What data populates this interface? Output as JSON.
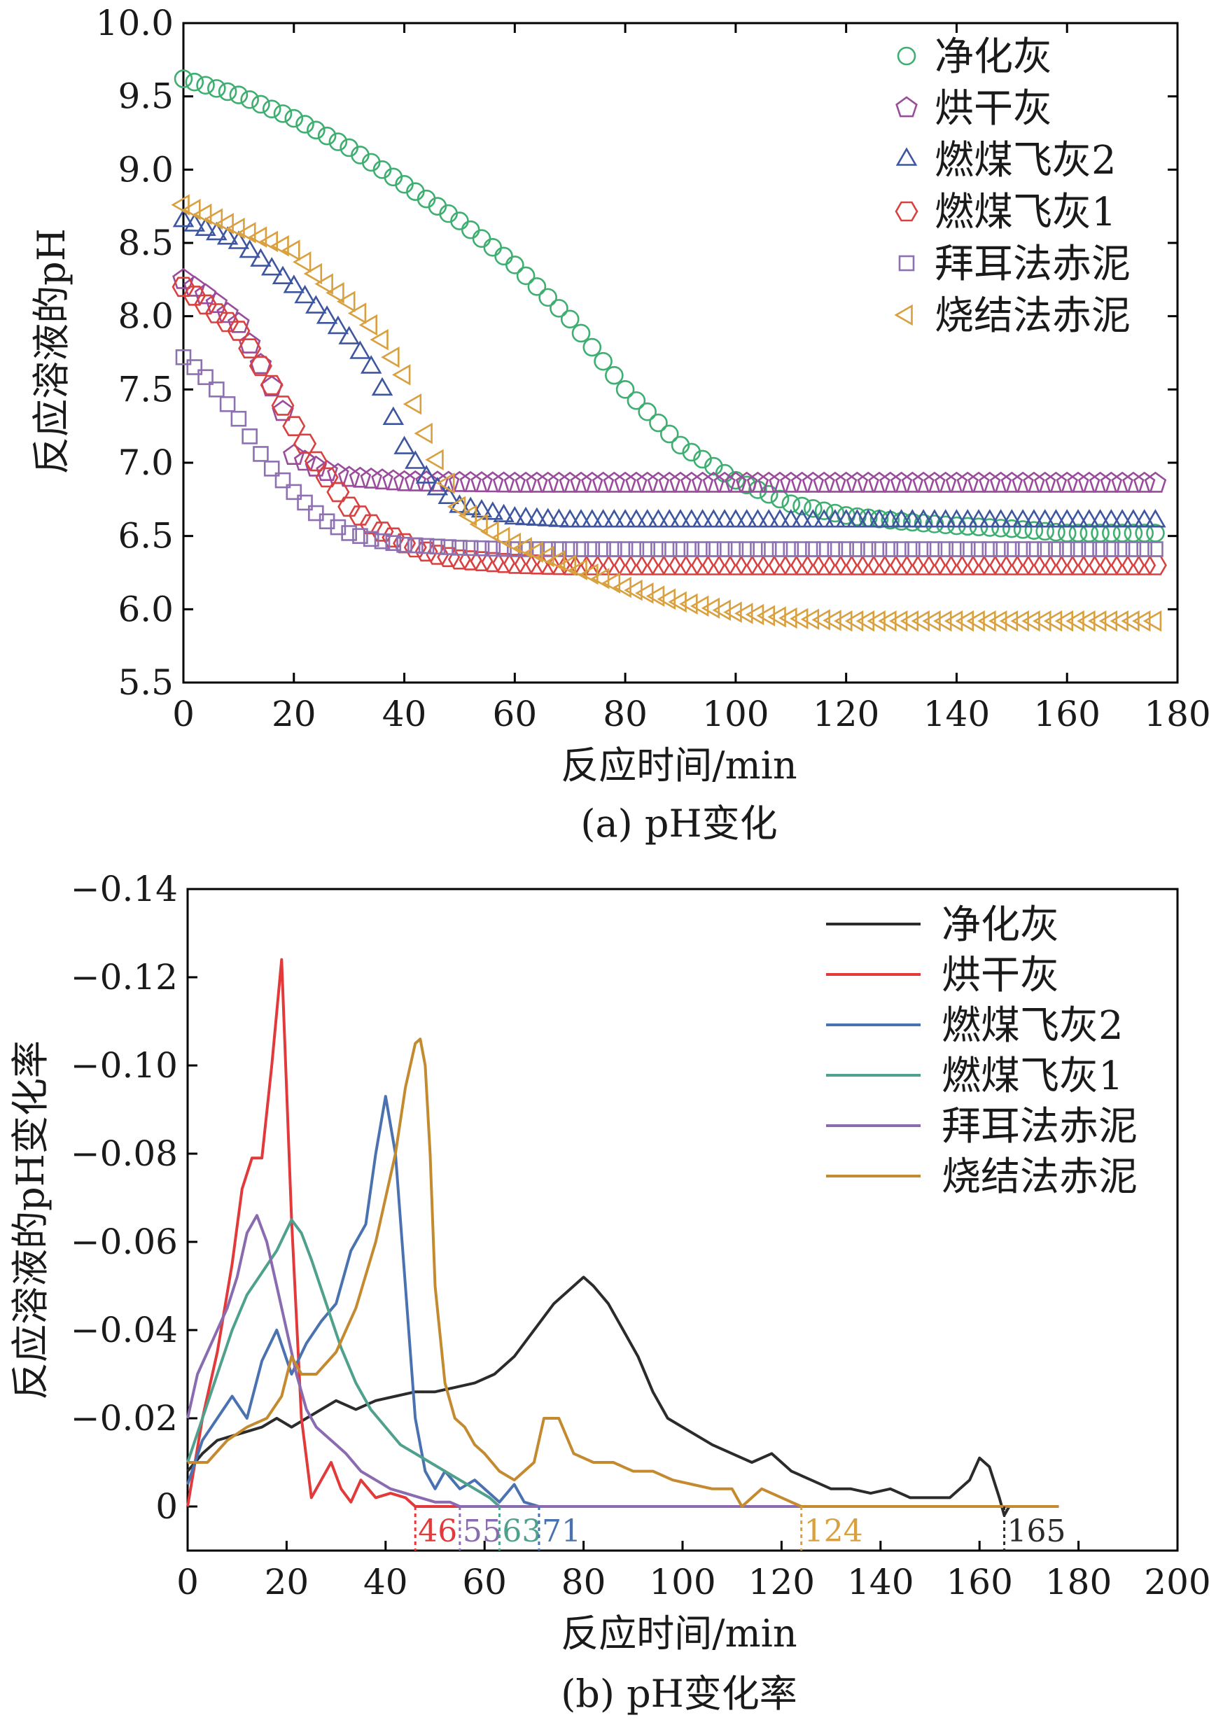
{
  "chart_data": [
    {
      "type": "scatter",
      "caption": "(a) pH变化",
      "xlabel": "反应时间/min",
      "ylabel": "反应溶液的pH",
      "xlim": [
        0,
        180
      ],
      "ylim": [
        5.5,
        10.0
      ],
      "xticks": [
        0,
        20,
        40,
        60,
        80,
        100,
        120,
        140,
        160,
        180
      ],
      "xtick_labels": [
        "0",
        "20",
        "40",
        "60",
        "80",
        "100",
        "120",
        "140",
        "160",
        "180"
      ],
      "yticks": [
        5.5,
        6.0,
        6.5,
        7.0,
        7.5,
        8.0,
        8.5,
        9.0,
        9.5,
        10.0
      ],
      "ytick_labels": [
        "5.5",
        "6.0",
        "6.5",
        "7.0",
        "7.5",
        "8.0",
        "8.5",
        "9.0",
        "9.5",
        "10.0"
      ],
      "legend_position": "top-right",
      "series": [
        {
          "name": "净化灰",
          "marker": "circle",
          "color": "#3fae71",
          "x": [
            0,
            10,
            20,
            30,
            40,
            50,
            60,
            70,
            80,
            90,
            100,
            110,
            120,
            130,
            140,
            150,
            160,
            176
          ],
          "y": [
            9.62,
            9.51,
            9.35,
            9.15,
            8.9,
            8.65,
            8.35,
            7.98,
            7.5,
            7.12,
            6.88,
            6.72,
            6.64,
            6.6,
            6.57,
            6.55,
            6.52,
            6.52
          ]
        },
        {
          "name": "烘干灰",
          "marker": "pentagon",
          "color": "#9a4c9c",
          "x": [
            0,
            5,
            10,
            15,
            18,
            20,
            25,
            30,
            40,
            60,
            100,
            176
          ],
          "y": [
            8.25,
            8.12,
            7.95,
            7.6,
            7.35,
            7.05,
            6.95,
            6.9,
            6.87,
            6.86,
            6.86,
            6.86
          ]
        },
        {
          "name": "燃煤飞灰2",
          "marker": "triangle",
          "color": "#3e56a0",
          "x": [
            0,
            10,
            20,
            30,
            35,
            40,
            45,
            50,
            60,
            70,
            100,
            176
          ],
          "y": [
            8.65,
            8.5,
            8.2,
            7.85,
            7.6,
            7.1,
            6.85,
            6.7,
            6.62,
            6.6,
            6.6,
            6.6
          ]
        },
        {
          "name": "燃煤飞灰1",
          "marker": "hexagon",
          "color": "#d94040",
          "x": [
            0,
            5,
            10,
            15,
            20,
            25,
            30,
            35,
            40,
            45,
            50,
            60,
            70,
            176
          ],
          "y": [
            8.2,
            8.05,
            7.9,
            7.6,
            7.25,
            6.95,
            6.7,
            6.55,
            6.45,
            6.38,
            6.34,
            6.31,
            6.3,
            6.3
          ]
        },
        {
          "name": "拜耳法赤泥",
          "marker": "square",
          "color": "#8d71b0",
          "x": [
            0,
            5,
            10,
            15,
            20,
            25,
            30,
            35,
            40,
            50,
            60,
            176
          ],
          "y": [
            7.72,
            7.55,
            7.3,
            7.0,
            6.8,
            6.62,
            6.52,
            6.47,
            6.44,
            6.42,
            6.41,
            6.41
          ]
        },
        {
          "name": "烧结法赤泥",
          "marker": "triangle-left",
          "color": "#d9a040",
          "x": [
            0,
            10,
            20,
            25,
            30,
            35,
            40,
            45,
            50,
            55,
            60,
            70,
            80,
            90,
            100,
            110,
            120,
            176
          ],
          "y": [
            8.76,
            8.6,
            8.45,
            8.25,
            8.1,
            7.9,
            7.6,
            7.1,
            6.7,
            6.55,
            6.45,
            6.3,
            6.15,
            6.05,
            5.98,
            5.94,
            5.92,
            5.92
          ]
        }
      ]
    },
    {
      "type": "line",
      "caption": "(b) pH变化率",
      "xlabel": "反应时间/min",
      "ylabel": "反应溶液的pH变化率",
      "xlim": [
        0,
        200
      ],
      "ylim": [
        0.01,
        -0.14
      ],
      "xticks": [
        0,
        20,
        40,
        60,
        80,
        100,
        120,
        140,
        160,
        180,
        200
      ],
      "xtick_labels": [
        "0",
        "20",
        "40",
        "60",
        "80",
        "100",
        "120",
        "140",
        "160",
        "180",
        "200"
      ],
      "yticks": [
        0,
        -0.02,
        -0.04,
        -0.06,
        -0.08,
        -0.1,
        -0.12,
        -0.14
      ],
      "ytick_labels": [
        "0",
        "−0.02",
        "−0.04",
        "−0.06",
        "−0.08",
        "−0.10",
        "−0.12",
        "−0.14"
      ],
      "legend_position": "top-right",
      "series": [
        {
          "name": "净化灰",
          "color": "#2b2b2b",
          "x": [
            0,
            3,
            6,
            9,
            12,
            15,
            18,
            21,
            24,
            27,
            30,
            34,
            38,
            42,
            46,
            50,
            54,
            58,
            62,
            66,
            70,
            74,
            78,
            80,
            82,
            85,
            88,
            91,
            94,
            97,
            100,
            103,
            106,
            110,
            114,
            118,
            122,
            126,
            130,
            134,
            138,
            142,
            146,
            150,
            154,
            158,
            160,
            162,
            164,
            165,
            166,
            176
          ],
          "y": [
            -0.008,
            -0.012,
            -0.015,
            -0.016,
            -0.017,
            -0.018,
            -0.02,
            -0.018,
            -0.02,
            -0.022,
            -0.024,
            -0.022,
            -0.024,
            -0.025,
            -0.026,
            -0.026,
            -0.027,
            -0.028,
            -0.03,
            -0.034,
            -0.04,
            -0.046,
            -0.05,
            -0.052,
            -0.05,
            -0.046,
            -0.04,
            -0.034,
            -0.026,
            -0.02,
            -0.018,
            -0.016,
            -0.014,
            -0.012,
            -0.01,
            -0.012,
            -0.008,
            -0.006,
            -0.004,
            -0.004,
            -0.003,
            -0.004,
            -0.002,
            -0.002,
            -0.002,
            -0.006,
            -0.011,
            -0.009,
            -0.002,
            0.002,
            0.0,
            0.0
          ]
        },
        {
          "name": "烘干灰",
          "color": "#e23a3a",
          "x": [
            0,
            3,
            6,
            9,
            11,
            13,
            15,
            17,
            19,
            21,
            23,
            25,
            27,
            29,
            31,
            33,
            35,
            38,
            41,
            44,
            46,
            48,
            176
          ],
          "y": [
            0.0,
            -0.02,
            -0.035,
            -0.055,
            -0.072,
            -0.079,
            -0.079,
            -0.1,
            -0.124,
            -0.065,
            -0.02,
            -0.002,
            -0.006,
            -0.01,
            -0.004,
            -0.001,
            -0.006,
            -0.002,
            -0.003,
            -0.002,
            0.0,
            0.0,
            0.0
          ]
        },
        {
          "name": "燃煤飞灰2",
          "color": "#4a72b0",
          "x": [
            0,
            3,
            6,
            9,
            12,
            15,
            18,
            21,
            24,
            27,
            30,
            33,
            36,
            38,
            40,
            42,
            44,
            46,
            48,
            50,
            52,
            55,
            58,
            61,
            63,
            66,
            68,
            71,
            176
          ],
          "y": [
            -0.005,
            -0.015,
            -0.02,
            -0.025,
            -0.02,
            -0.033,
            -0.04,
            -0.03,
            -0.037,
            -0.042,
            -0.046,
            -0.058,
            -0.064,
            -0.08,
            -0.093,
            -0.08,
            -0.05,
            -0.02,
            -0.008,
            -0.004,
            -0.008,
            -0.004,
            -0.006,
            -0.003,
            -0.001,
            -0.005,
            -0.001,
            0.0,
            0.0
          ]
        },
        {
          "name": "燃煤飞灰1",
          "color": "#4fa08c",
          "x": [
            0,
            3,
            6,
            9,
            12,
            15,
            18,
            21,
            23,
            25,
            28,
            31,
            34,
            37,
            40,
            43,
            46,
            49,
            52,
            55,
            58,
            61,
            63,
            176
          ],
          "y": [
            -0.01,
            -0.02,
            -0.03,
            -0.04,
            -0.048,
            -0.053,
            -0.058,
            -0.065,
            -0.062,
            -0.056,
            -0.046,
            -0.036,
            -0.028,
            -0.022,
            -0.018,
            -0.014,
            -0.012,
            -0.01,
            -0.008,
            -0.006,
            -0.004,
            -0.002,
            0.0,
            0.0
          ]
        },
        {
          "name": "拜耳法赤泥",
          "color": "#8a6bb0",
          "x": [
            0,
            2,
            4,
            6,
            8,
            10,
            12,
            14,
            16,
            18,
            20,
            22,
            24,
            26,
            28,
            30,
            32,
            35,
            38,
            41,
            44,
            47,
            50,
            53,
            55,
            176
          ],
          "y": [
            -0.02,
            -0.03,
            -0.035,
            -0.04,
            -0.045,
            -0.052,
            -0.062,
            -0.066,
            -0.06,
            -0.05,
            -0.04,
            -0.03,
            -0.022,
            -0.018,
            -0.016,
            -0.014,
            -0.012,
            -0.008,
            -0.006,
            -0.004,
            -0.003,
            -0.002,
            -0.001,
            -0.001,
            0.0,
            0.0
          ]
        },
        {
          "name": "烧结法赤泥",
          "color": "#c48a30",
          "x": [
            0,
            4,
            8,
            12,
            16,
            19,
            21,
            23,
            26,
            30,
            34,
            38,
            42,
            44,
            46,
            47,
            48,
            49,
            50,
            52,
            54,
            56,
            58,
            60,
            63,
            66,
            70,
            72,
            75,
            78,
            82,
            86,
            90,
            94,
            98,
            102,
            106,
            110,
            112,
            116,
            120,
            124,
            176
          ],
          "y": [
            -0.01,
            -0.01,
            -0.015,
            -0.018,
            -0.02,
            -0.025,
            -0.034,
            -0.03,
            -0.03,
            -0.035,
            -0.045,
            -0.06,
            -0.08,
            -0.095,
            -0.105,
            -0.106,
            -0.1,
            -0.08,
            -0.05,
            -0.028,
            -0.02,
            -0.018,
            -0.014,
            -0.012,
            -0.008,
            -0.006,
            -0.01,
            -0.02,
            -0.02,
            -0.012,
            -0.01,
            -0.01,
            -0.008,
            -0.008,
            -0.006,
            -0.005,
            -0.004,
            -0.004,
            0.0,
            -0.004,
            -0.002,
            0.0,
            0.0
          ]
        }
      ],
      "annotations": [
        {
          "x": 46,
          "label": "46",
          "color": "#e23a3a"
        },
        {
          "x": 55,
          "label": "55",
          "color": "#8a6bb0"
        },
        {
          "x": 63,
          "label": "63",
          "color": "#4fa08c"
        },
        {
          "x": 71,
          "label": "71",
          "color": "#4a72b0"
        },
        {
          "x": 124,
          "label": "124",
          "color": "#d9a040"
        },
        {
          "x": 165,
          "label": "165",
          "color": "#2b2b2b"
        }
      ]
    }
  ]
}
